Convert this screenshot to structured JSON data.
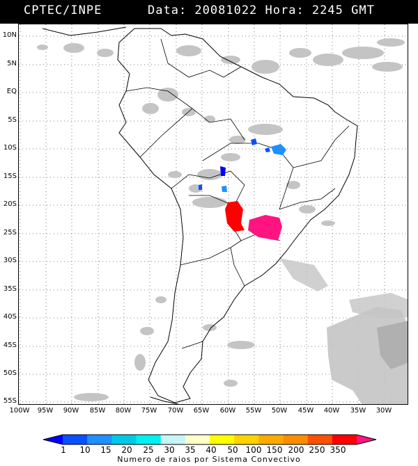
{
  "header": {
    "source": "CPTEC/INPE",
    "datetime": "Data: 20081022 Hora: 2245 GMT"
  },
  "axes": {
    "lat_labels": [
      "10N",
      "5N",
      "EQ",
      "5S",
      "10S",
      "15S",
      "20S",
      "25S",
      "30S",
      "35S",
      "40S",
      "45S",
      "50S",
      "55S"
    ],
    "lon_labels": [
      "100W",
      "95W",
      "90W",
      "85W",
      "80W",
      "75W",
      "70W",
      "65W",
      "60W",
      "55W",
      "50W",
      "45W",
      "40W",
      "35W",
      "30W"
    ]
  },
  "legend": {
    "values": [
      "1",
      "10",
      "15",
      "20",
      "25",
      "30",
      "35",
      "40",
      "50",
      "100",
      "150",
      "200",
      "250",
      "350"
    ],
    "colors": [
      "#0000ff",
      "#0a50ff",
      "#1e90ff",
      "#00c8e6",
      "#00f0f0",
      "#c8f5f5",
      "#ffffc8",
      "#ffff00",
      "#ffd200",
      "#ffaa00",
      "#ff8c00",
      "#ff5000",
      "#ff0000",
      "#ff1480"
    ],
    "caption": "Numero de raios por Sistema Convectivo"
  },
  "colors": {
    "land_outline": "#000000",
    "cloud": "#c8c8c8",
    "grid": "#555555"
  }
}
